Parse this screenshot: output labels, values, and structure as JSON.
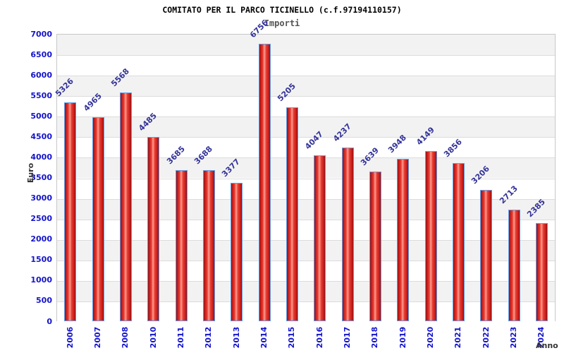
{
  "chart_data": {
    "type": "bar",
    "title": "COMITATO PER IL PARCO TICINELLO (c.f.97194110157)",
    "subtitle": "Importi",
    "xlabel": "Anno",
    "ylabel": "Euro",
    "categories": [
      "2006",
      "2007",
      "2008",
      "2010",
      "2011",
      "2012",
      "2013",
      "2014",
      "2015",
      "2016",
      "2017",
      "2018",
      "2019",
      "2020",
      "2021",
      "2022",
      "2023",
      "2024"
    ],
    "values": [
      5326,
      4965,
      5568,
      4485,
      3685,
      3688,
      3377,
      6756,
      5205,
      4047,
      4237,
      3639,
      3948,
      4149,
      3856,
      3206,
      2713,
      2385
    ],
    "ylim": [
      0,
      7000
    ],
    "ytick_interval": 500,
    "grid": "horizontal-bands",
    "legend_position": "none",
    "colors": {
      "bar_edge": "#931111",
      "bar_body": "#e93c30",
      "bar_mid": "#c41c1c",
      "bar_highlight": "#fb9e92",
      "bar_border": "#5f9fe8",
      "tick_label": "#1414cc",
      "value_label": "#333399",
      "band_gray": "#f2f2f2",
      "band_white": "#ffffff",
      "gridline": "#dcdcdc",
      "plot_border": "#c8c8c8",
      "title_color": "#000000",
      "subtitle_color": "#555555",
      "axis_title_color": "#333333"
    }
  }
}
